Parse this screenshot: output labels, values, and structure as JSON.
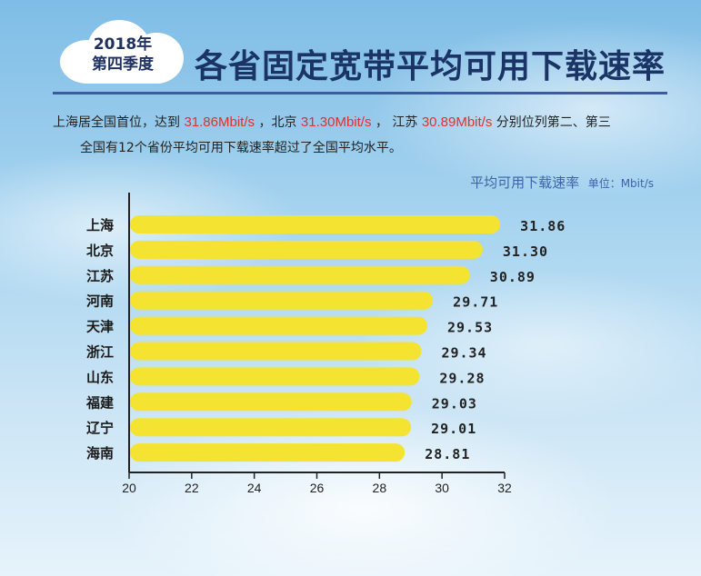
{
  "header": {
    "badge_line1": "2018年",
    "badge_line2": "第四季度",
    "title": "各省固定宽带平均可用下载速率"
  },
  "description": {
    "line1_parts": [
      "上海居全国首位，达到 ",
      "31.86Mbit/s",
      " ，北京 ",
      "31.30Mbit/s",
      " ， 江苏 ",
      "30.89Mbit/s",
      " 分别位列第二、第三"
    ],
    "line2": "全国有12个省份平均可用下载速率超过了全国平均水平。"
  },
  "chart_data": {
    "type": "bar",
    "orientation": "horizontal",
    "title": "平均可用下载速率",
    "unit_label": "单位：Mbit/s",
    "categories": [
      "上海",
      "北京",
      "江苏",
      "河南",
      "天津",
      "浙江",
      "山东",
      "福建",
      "辽宁",
      "海南"
    ],
    "values": [
      31.86,
      31.3,
      30.89,
      29.71,
      29.53,
      29.34,
      29.28,
      29.03,
      29.01,
      28.81
    ],
    "value_labels": [
      "31.86",
      "31.30",
      "30.89",
      "29.71",
      "29.53",
      "29.34",
      "29.28",
      "29.03",
      "29.01",
      "28.81"
    ],
    "xlim": [
      20,
      32
    ],
    "xticks": [
      20,
      22,
      24,
      26,
      28,
      30,
      32
    ],
    "grid": false,
    "bar_color": "#f4e330"
  }
}
